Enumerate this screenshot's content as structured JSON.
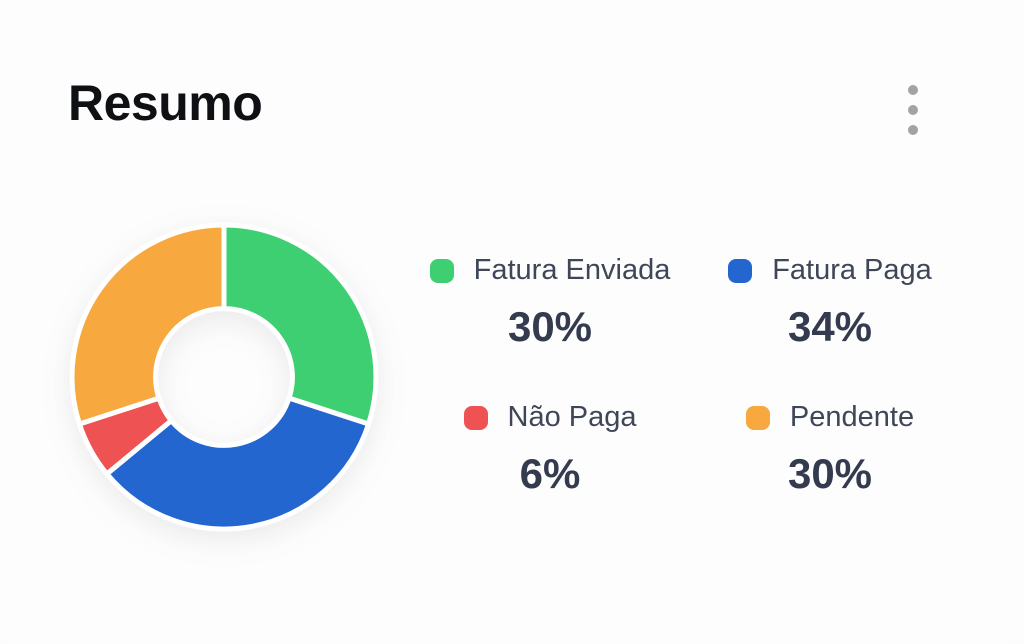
{
  "page": {
    "title": "Resumo"
  },
  "header": {
    "menu_icon": "kebab-menu-icon"
  },
  "chart_data": {
    "type": "pie",
    "variant": "donut",
    "title": "Resumo",
    "categories": [
      "Fatura Enviada",
      "Fatura Paga",
      "Não Paga",
      "Pendente"
    ],
    "values": [
      30,
      34,
      6,
      30
    ],
    "value_labels": [
      "30%",
      "34%",
      "6%",
      "30%"
    ],
    "colors": [
      "#3ecf72",
      "#2366cf",
      "#ee5253",
      "#f7a83f"
    ],
    "start_angle_deg": 0,
    "clockwise": true,
    "inner_radius_ratio": 0.45,
    "segment_gap_color": "#ffffff",
    "legend_position": "right"
  },
  "legend": {
    "items": [
      {
        "label": "Fatura Enviada",
        "value": "30%",
        "color": "#3ecf72"
      },
      {
        "label": "Fatura Paga",
        "value": "34%",
        "color": "#2366cf"
      },
      {
        "label": "Não Paga",
        "value": "6%",
        "color": "#ee5253"
      },
      {
        "label": "Pendente",
        "value": "30%",
        "color": "#f7a83f"
      }
    ]
  },
  "theme": {
    "background": "#fafafa",
    "title_color": "#0e1013",
    "label_color": "#3f4657",
    "value_color": "#343b4f",
    "kebab_dot_color": "#a3a3a5"
  }
}
